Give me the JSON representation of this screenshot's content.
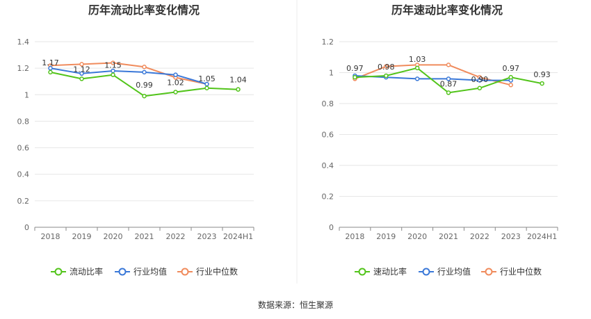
{
  "source": "数据来源：恒生聚源",
  "colors": {
    "company": "#52c41a",
    "industry_avg": "#3a78d8",
    "industry_median": "#f08b5c",
    "grid": "#e6e6e6",
    "axis": "#888888",
    "divider": "#eeeeee"
  },
  "chart_data": [
    {
      "type": "line",
      "title": "历年流动比率变化情况",
      "categories": [
        "2018",
        "2019",
        "2020",
        "2021",
        "2022",
        "2023",
        "2024H1"
      ],
      "ylim": [
        0,
        1.4
      ],
      "yticks": [
        0,
        0.2,
        0.4,
        0.6,
        0.8,
        1,
        1.2,
        1.4
      ],
      "ytick_labels": [
        "0",
        "0.2",
        "0.4",
        "0.6",
        "0.8",
        "1",
        "1.2",
        "1.4"
      ],
      "grid": true,
      "legend_position": "bottom",
      "series": [
        {
          "name": "流动比率",
          "color_key": "company",
          "values": [
            1.17,
            1.12,
            1.15,
            0.99,
            1.02,
            1.05,
            1.04
          ],
          "labels": [
            "1.17",
            "1.12",
            "1.15",
            "0.99",
            "1.02",
            "1.05",
            "1.04"
          ]
        },
        {
          "name": "行业均值",
          "color_key": "industry_avg",
          "values": [
            1.2,
            1.16,
            1.18,
            1.17,
            1.15,
            1.08,
            null
          ]
        },
        {
          "name": "行业中位数",
          "color_key": "industry_median",
          "values": [
            1.22,
            1.23,
            1.24,
            1.21,
            1.13,
            1.08,
            null
          ]
        }
      ]
    },
    {
      "type": "line",
      "title": "历年速动比率变化情况",
      "categories": [
        "2018",
        "2019",
        "2020",
        "2021",
        "2022",
        "2023",
        "2024H1"
      ],
      "ylim": [
        0,
        1.2
      ],
      "yticks": [
        0,
        0.2,
        0.4,
        0.6,
        0.8,
        1,
        1.2
      ],
      "ytick_labels": [
        "0",
        "0.2",
        "0.4",
        "0.6",
        "0.8",
        "1",
        "1.2"
      ],
      "grid": true,
      "legend_position": "bottom",
      "series": [
        {
          "name": "速动比率",
          "color_key": "company",
          "values": [
            0.97,
            0.98,
            1.03,
            0.87,
            0.9,
            0.97,
            0.93
          ],
          "labels": [
            "0.97",
            "0.98",
            "1.03",
            "0.87",
            "0.90",
            "0.97",
            "0.93"
          ]
        },
        {
          "name": "行业均值",
          "color_key": "industry_avg",
          "values": [
            0.98,
            0.97,
            0.96,
            0.96,
            0.95,
            0.95,
            null
          ]
        },
        {
          "name": "行业中位数",
          "color_key": "industry_median",
          "values": [
            0.96,
            1.04,
            1.05,
            1.05,
            0.97,
            0.92,
            null
          ]
        }
      ]
    }
  ]
}
